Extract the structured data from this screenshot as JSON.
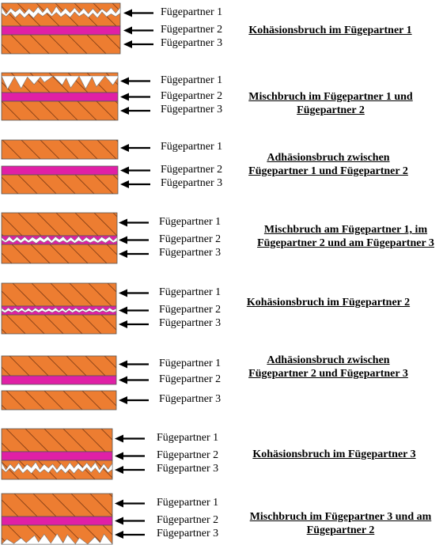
{
  "colors": {
    "substrate": "#ED7D31",
    "hatch": "#8A4116",
    "adhesive": "#E020A6",
    "fracture": "#ffffff",
    "outline": "#555555",
    "arrow": "#000000"
  },
  "legend_labels": [
    "Fügepartner 1",
    "Fügepartner 2",
    "Fügepartner 3"
  ],
  "cases": [
    {
      "caption": "Kohäsionsbruch im Fügepartner 1"
    },
    {
      "caption": "Mischbruch im Fügepartner 1 und Fügepartner 2"
    },
    {
      "caption": "Adhäsionsbruch zwischen Fügepartner 1 und Fügepartner 2"
    },
    {
      "caption": "Mischbruch am Fügepartner 1, im Fügepartner 2 und am Fügepartner 3"
    },
    {
      "caption": "Kohäsionsbruch im Fügepartner 2"
    },
    {
      "caption": "Adhäsionsbruch zwischen Fügepartner 2 und Fügepartner 3"
    },
    {
      "caption": "Kohäsionsbruch im Fügepartner 3"
    },
    {
      "caption": "Mischbruch im Fügepartner 3 und am Fügepartner 2"
    }
  ]
}
